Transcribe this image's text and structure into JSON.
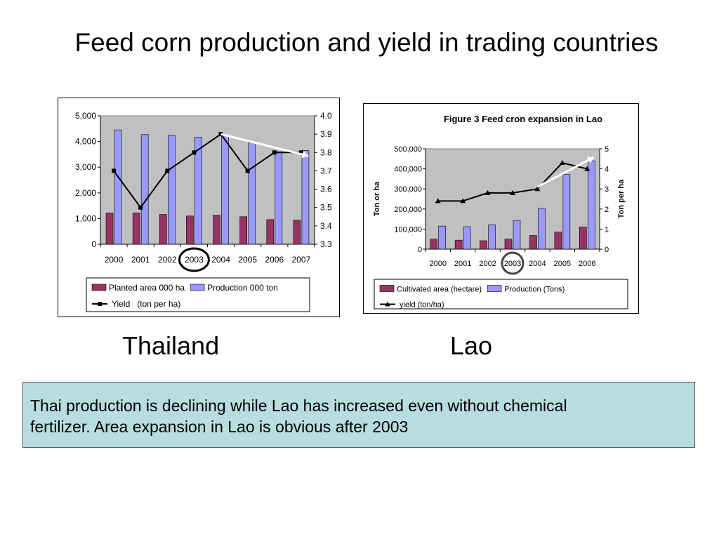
{
  "slide": {
    "title": "Feed corn production and yield  in trading countries",
    "country_labels": [
      "Thailand",
      "Lao"
    ],
    "note_lines": [
      "Thai production is declining while Lao has increased even without chemical",
      " fertilizer. Area expansion in Lao is obvious after 2003"
    ]
  },
  "colors": {
    "plot_bg": "#c0c0c0",
    "area_bar": "#993366",
    "production_bar": "#9999ff",
    "line": "#000000",
    "arrow": "#ffffff"
  },
  "chart_data": [
    {
      "id": "thailand",
      "type": "bar",
      "title": "",
      "categories": [
        "2000",
        "2001",
        "2002",
        "2003",
        "2004",
        "2005",
        "2006",
        "2007"
      ],
      "series": [
        {
          "name": "Planted area 000 ha",
          "type": "bar",
          "axis": "left",
          "values": [
            1220,
            1220,
            1160,
            1100,
            1130,
            1070,
            960,
            940
          ]
        },
        {
          "name": "Production 000 ton",
          "type": "bar",
          "axis": "left",
          "values": [
            4450,
            4270,
            4240,
            4170,
            4220,
            3960,
            3600,
            3650
          ]
        },
        {
          "name": "Yield   (ton per ha)",
          "type": "line",
          "marker": "square",
          "axis": "right",
          "values": [
            3.7,
            3.5,
            3.7,
            3.8,
            3.9,
            3.7,
            3.8,
            3.8
          ]
        }
      ],
      "left_axis": {
        "label": "",
        "range": [
          0,
          5000
        ],
        "ticks": [
          "0",
          "1,000",
          "2,000",
          "3,000",
          "4,000",
          "5,000"
        ]
      },
      "right_axis": {
        "label": "",
        "range": [
          3.3,
          4.0
        ],
        "ticks": [
          "3.3",
          "3.4",
          "3.5",
          "3.6",
          "3.7",
          "3.8",
          "3.9",
          "4.0"
        ]
      },
      "highlight_category": "2003",
      "trend_arrow": {
        "from": [
          "2004",
          3.9
        ],
        "to": [
          "2007",
          3.78
        ],
        "axis": "right"
      },
      "legend_position": "bottom"
    },
    {
      "id": "lao",
      "type": "bar",
      "title": "Figure 3 Feed cron expansion in Lao",
      "categories": [
        "2000",
        "2001",
        "2002",
        "2003",
        "2004",
        "2005",
        "2006"
      ],
      "series": [
        {
          "name": "Cultivated area (hectare)",
          "type": "bar",
          "axis": "left",
          "values": [
            50000,
            45000,
            42000,
            50000,
            68000,
            85000,
            110000
          ]
        },
        {
          "name": "Production (Tons)",
          "type": "bar",
          "axis": "left",
          "values": [
            115000,
            112000,
            122000,
            143000,
            203000,
            372000,
            440000
          ]
        },
        {
          "name": "yield (ton/ha)",
          "type": "line",
          "marker": "triangle",
          "axis": "right",
          "values": [
            2.4,
            2.4,
            2.8,
            2.8,
            3.0,
            4.3,
            4.0
          ]
        }
      ],
      "left_axis": {
        "label": "Ton or ha",
        "range": [
          0,
          500000
        ],
        "ticks": [
          "0",
          "100,000",
          "200,000",
          "300,000",
          "400,000",
          "500,000"
        ]
      },
      "right_axis": {
        "label": "Ton per ha",
        "range": [
          0,
          5
        ],
        "ticks": [
          "0",
          "1",
          "2",
          "3",
          "4",
          "5"
        ]
      },
      "highlight_category": "2003",
      "trend_arrow": {
        "from": [
          "2004",
          3.1
        ],
        "to": [
          "2006",
          4.6
        ],
        "axis": "right"
      },
      "legend_position": "bottom"
    }
  ]
}
